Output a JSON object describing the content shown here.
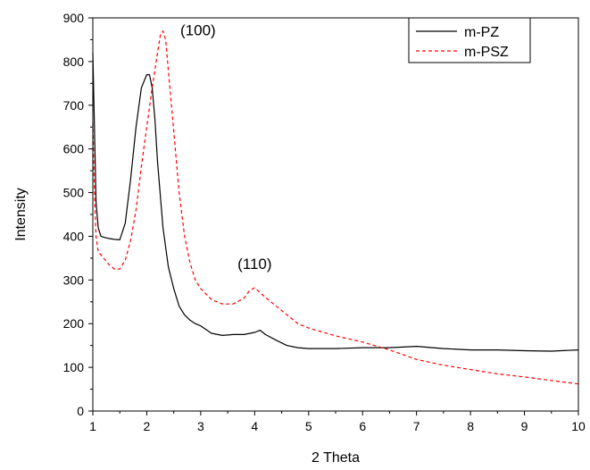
{
  "chart_data": {
    "type": "line",
    "title": "",
    "xlabel": "2 Theta",
    "ylabel": "Intensity",
    "xlim": [
      1,
      10
    ],
    "ylim": [
      0,
      900
    ],
    "xticks": [
      1,
      2,
      3,
      4,
      5,
      6,
      7,
      8,
      9,
      10
    ],
    "yticks": [
      0,
      100,
      200,
      300,
      400,
      500,
      600,
      700,
      800,
      900
    ],
    "grid": false,
    "legend_position": "top-right",
    "annotations": [
      {
        "text": "(100)",
        "x": 2.95,
        "y": 860
      },
      {
        "text": "(110)",
        "x": 4.0,
        "y": 325
      }
    ],
    "series": [
      {
        "name": "m-PZ",
        "color": "#000000",
        "dash": "solid",
        "x": [
          1.0,
          1.03,
          1.06,
          1.1,
          1.15,
          1.2,
          1.3,
          1.4,
          1.5,
          1.6,
          1.7,
          1.8,
          1.9,
          2.0,
          2.05,
          2.1,
          2.15,
          2.2,
          2.3,
          2.4,
          2.5,
          2.6,
          2.7,
          2.8,
          2.9,
          3.0,
          3.2,
          3.4,
          3.6,
          3.8,
          4.0,
          4.1,
          4.2,
          4.4,
          4.6,
          4.8,
          5.0,
          5.5,
          6.0,
          6.5,
          7.0,
          7.5,
          8.0,
          8.5,
          9.0,
          9.5,
          10.0
        ],
        "values": [
          820,
          650,
          480,
          420,
          400,
          398,
          395,
          393,
          392,
          430,
          530,
          650,
          740,
          770,
          770,
          740,
          670,
          570,
          420,
          330,
          280,
          240,
          220,
          208,
          200,
          195,
          178,
          173,
          175,
          175,
          180,
          185,
          175,
          162,
          150,
          145,
          143,
          143,
          145,
          145,
          148,
          143,
          140,
          140,
          138,
          137,
          140
        ]
      },
      {
        "name": "m-PSZ",
        "color": "#ff0000",
        "dash": "dashed",
        "x": [
          1.0,
          1.03,
          1.06,
          1.1,
          1.2,
          1.3,
          1.4,
          1.5,
          1.6,
          1.7,
          1.8,
          1.9,
          2.0,
          2.1,
          2.2,
          2.25,
          2.3,
          2.35,
          2.4,
          2.5,
          2.6,
          2.7,
          2.8,
          2.9,
          3.0,
          3.2,
          3.4,
          3.6,
          3.8,
          3.9,
          4.0,
          4.2,
          4.5,
          4.8,
          5.0,
          5.5,
          6.0,
          6.5,
          7.0,
          7.5,
          8.0,
          8.5,
          9.0,
          9.5,
          10.0
        ],
        "values": [
          660,
          500,
          400,
          365,
          350,
          335,
          325,
          325,
          345,
          390,
          460,
          560,
          650,
          740,
          820,
          860,
          870,
          850,
          780,
          640,
          500,
          400,
          340,
          300,
          280,
          255,
          245,
          245,
          258,
          275,
          282,
          260,
          230,
          200,
          190,
          172,
          158,
          140,
          118,
          105,
          95,
          85,
          78,
          70,
          62
        ]
      }
    ]
  }
}
